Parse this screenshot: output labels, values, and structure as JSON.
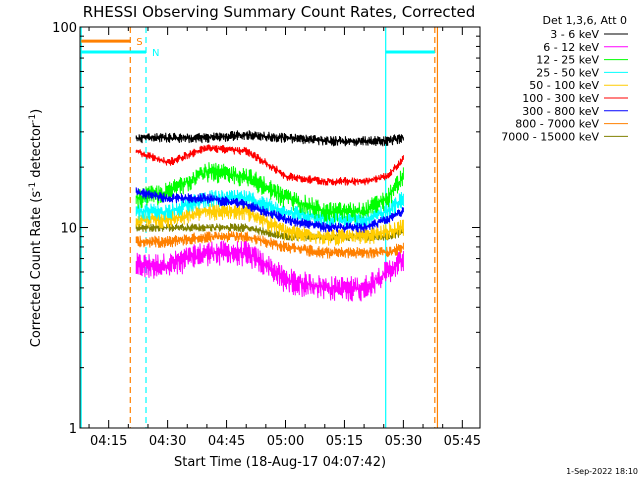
{
  "chart_data": {
    "type": "line",
    "title": "RHESSI Observing Summary Count Rates, Corrected",
    "xlabel": "Start Time (18-Aug-17 04:07:42)",
    "ylabel_parts": [
      "Corrected Count Rate (s",
      "-1",
      " detector",
      "-1",
      ")"
    ],
    "footer": "1-Sep-2022 18:10",
    "y_scale": "log",
    "ylim": [
      1,
      100
    ],
    "xlim": [
      "04:07:42",
      "05:49:30"
    ],
    "x_ticks": [
      "04:15",
      "04:30",
      "04:45",
      "05:00",
      "05:15",
      "05:30",
      "05:45"
    ],
    "y_ticks": [
      "1",
      "10",
      "100"
    ],
    "legend_header": "Det 1,3,6, Att 0",
    "legend_position": "top-right",
    "series": [
      {
        "name": "3 - 6 keV",
        "color": "#000000",
        "x": [
          "04:22",
          "04:30",
          "04:40",
          "04:50",
          "05:00",
          "05:10",
          "05:20",
          "05:26",
          "05:30"
        ],
        "y": [
          28,
          28,
          28,
          29,
          28,
          27,
          27,
          27,
          28
        ],
        "noise": 0.06
      },
      {
        "name": "6 - 12 keV",
        "color": "#ff00ff",
        "x": [
          "04:22",
          "04:30",
          "04:40",
          "04:50",
          "05:00",
          "05:10",
          "05:20",
          "05:26",
          "05:30"
        ],
        "y": [
          6.5,
          6.5,
          7.5,
          7.5,
          5.5,
          5,
          5,
          6,
          7
        ],
        "noise": 0.15
      },
      {
        "name": "12 - 25 keV",
        "color": "#00ff00",
        "x": [
          "04:22",
          "04:30",
          "04:40",
          "04:50",
          "05:00",
          "05:10",
          "05:20",
          "05:26",
          "05:30"
        ],
        "y": [
          14,
          15,
          19,
          18,
          14,
          12,
          12,
          14,
          18
        ],
        "noise": 0.12
      },
      {
        "name": "25 - 50 keV",
        "color": "#00ffff",
        "x": [
          "04:22",
          "04:30",
          "04:40",
          "04:50",
          "05:00",
          "05:10",
          "05:20",
          "05:26",
          "05:30"
        ],
        "y": [
          12,
          12,
          14,
          14,
          12,
          11,
          11,
          12,
          14
        ],
        "noise": 0.1
      },
      {
        "name": "50 - 100 keV",
        "color": "#ffcc00",
        "x": [
          "04:22",
          "04:30",
          "04:40",
          "04:50",
          "05:00",
          "05:10",
          "05:20",
          "05:26",
          "05:30"
        ],
        "y": [
          11,
          11,
          12,
          12,
          9.5,
          9,
          9,
          9.5,
          10
        ],
        "noise": 0.1
      },
      {
        "name": "100 - 300 keV",
        "color": "#ff0000",
        "x": [
          "04:22",
          "04:30",
          "04:40",
          "04:50",
          "05:00",
          "05:10",
          "05:20",
          "05:26",
          "05:30"
        ],
        "y": [
          24,
          21,
          25,
          24,
          18,
          17,
          17,
          18,
          22
        ],
        "noise": 0.05
      },
      {
        "name": "300 - 800 keV",
        "color": "#0000ff",
        "x": [
          "04:22",
          "04:30",
          "04:40",
          "04:50",
          "05:00",
          "05:10",
          "05:20",
          "05:26",
          "05:30"
        ],
        "y": [
          15,
          14,
          14,
          13,
          11,
          10,
          10,
          11,
          12
        ],
        "noise": 0.06
      },
      {
        "name": "800 - 7000 keV",
        "color": "#ff8000",
        "x": [
          "04:22",
          "04:30",
          "04:40",
          "04:50",
          "05:00",
          "05:10",
          "05:20",
          "05:26",
          "05:30"
        ],
        "y": [
          8.5,
          8.5,
          9,
          9,
          8,
          7.5,
          7.5,
          7.5,
          8
        ],
        "noise": 0.07
      },
      {
        "name": "7000 - 15000 keV",
        "color": "#808000",
        "x": [
          "04:22",
          "04:30",
          "04:40",
          "04:50",
          "05:00",
          "05:10",
          "05:20",
          "05:26",
          "05:30"
        ],
        "y": [
          10,
          10,
          10,
          10,
          9,
          9,
          9,
          9,
          9.5
        ],
        "noise": 0.05
      }
    ],
    "annotations": [
      {
        "type": "vline",
        "x": "04:08:00",
        "color": "#00ffff",
        "style": "solid"
      },
      {
        "type": "vline",
        "x": "04:20:30",
        "color": "#ff8000",
        "style": "dashed"
      },
      {
        "type": "vline",
        "x": "04:24:30",
        "color": "#00ffff",
        "style": "dashed"
      },
      {
        "type": "vline",
        "x": "05:25:30",
        "color": "#00ffff",
        "style": "solid"
      },
      {
        "type": "vline",
        "x": "05:38:00",
        "color": "#ff8000",
        "style": "dashed"
      },
      {
        "type": "vline",
        "x": "05:38:40",
        "color": "#ff8000",
        "style": "solid"
      },
      {
        "type": "hbar",
        "x0": "04:08:00",
        "x1": "04:20:30",
        "y": 85,
        "color": "#ff8000",
        "label": "S"
      },
      {
        "type": "hbar",
        "x0": "04:08:00",
        "x1": "04:24:30",
        "y": 75,
        "color": "#00ffff",
        "label": "N"
      },
      {
        "type": "hbar",
        "x0": "05:25:30",
        "x1": "05:38:00",
        "y": 75,
        "color": "#00ffff",
        "label": ""
      }
    ]
  }
}
